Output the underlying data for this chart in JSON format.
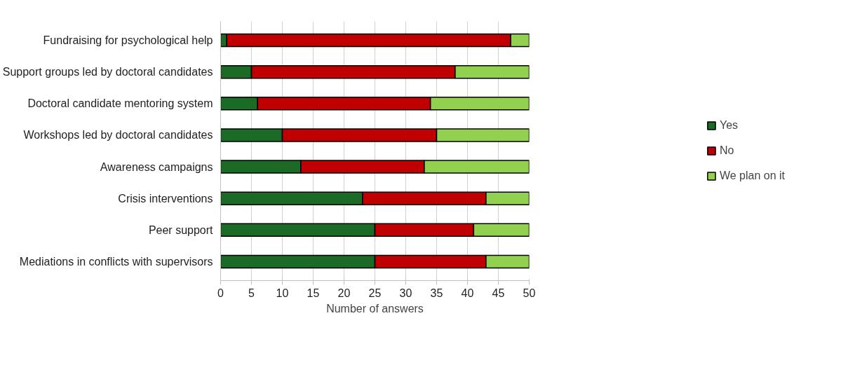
{
  "chart_data": {
    "type": "bar",
    "orientation": "horizontal",
    "stacked": true,
    "xlabel": "Number of answers",
    "categories": [
      "Fundraising for psychological help",
      "Support groups led by doctoral candidates",
      "Doctoral candidate mentoring system",
      "Workshops led by doctoral candidates",
      "Awareness campaigns",
      "Crisis interventions",
      "Peer support",
      "Mediations in conflicts with supervisors"
    ],
    "series": [
      {
        "name": "Yes",
        "color": "#1b6a25",
        "values": [
          1,
          5,
          6,
          10,
          13,
          23,
          25,
          25
        ]
      },
      {
        "name": "No",
        "color": "#c00000",
        "values": [
          46,
          33,
          28,
          25,
          20,
          20,
          16,
          18
        ]
      },
      {
        "name": "We plan on it",
        "color": "#92d050",
        "values": [
          3,
          12,
          16,
          15,
          17,
          7,
          9,
          7
        ]
      }
    ],
    "xlim": [
      0,
      50
    ],
    "xticks": [
      0,
      5,
      10,
      15,
      20,
      25,
      30,
      35,
      40,
      45,
      50
    ],
    "grid": "x",
    "legend": "right"
  }
}
